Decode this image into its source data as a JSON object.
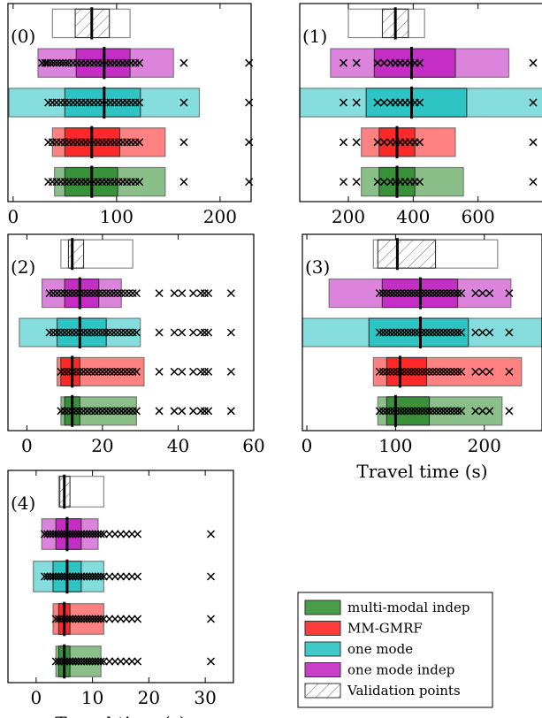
{
  "figure": {
    "legend": [
      {
        "label": "multi-modal indep",
        "color": "#2a8a2a"
      },
      {
        "label": "MM-GMRF",
        "color": "#ff1a1a"
      },
      {
        "label": "one mode",
        "color": "#1fbfbf"
      },
      {
        "label": "one mode indep",
        "color": "#bf1fbf"
      },
      {
        "label": "Validation points",
        "color": "#ffffff",
        "hatch": true
      }
    ]
  },
  "chart_data": [
    {
      "type": "box",
      "panel_label": "(0)",
      "xlabel": "",
      "xlim": [
        -5,
        230
      ],
      "xticks": [
        0,
        100,
        200
      ],
      "rows": [
        {
          "series": "Validation points",
          "whisker": [
            38,
            113
          ],
          "q1": 60,
          "median": 76,
          "q3": 93,
          "outliers": []
        },
        {
          "series": "one mode indep",
          "whisker": [
            24,
            155
          ],
          "q1": 61,
          "median": 88,
          "q3": 113,
          "outliers": [
            28,
            31,
            33,
            36,
            39,
            42,
            45,
            48,
            51,
            54,
            58,
            62,
            66,
            70,
            74,
            78,
            82,
            86,
            90,
            94,
            98,
            102,
            106,
            110,
            114,
            118,
            122,
            165,
            228
          ]
        },
        {
          "series": "one mode",
          "whisker": [
            -4,
            180
          ],
          "q1": 50,
          "median": 88,
          "q3": 123,
          "outliers": [
            34,
            38,
            42,
            46,
            50,
            54,
            58,
            62,
            66,
            70,
            74,
            78,
            82,
            86,
            90,
            94,
            98,
            102,
            106,
            110,
            114,
            118,
            122,
            165,
            228
          ]
        },
        {
          "series": "MM-GMRF",
          "whisker": [
            38,
            147
          ],
          "q1": 50,
          "median": 76,
          "q3": 103,
          "outliers": [
            34,
            38,
            42,
            46,
            50,
            54,
            58,
            62,
            66,
            70,
            74,
            78,
            82,
            86,
            90,
            94,
            98,
            102,
            106,
            110,
            114,
            118,
            122,
            165,
            228
          ]
        },
        {
          "series": "multi-modal indep",
          "whisker": [
            40,
            147
          ],
          "q1": 50,
          "median": 76,
          "q3": 101,
          "outliers": [
            34,
            38,
            42,
            46,
            50,
            54,
            58,
            62,
            66,
            70,
            74,
            78,
            82,
            86,
            90,
            94,
            98,
            102,
            106,
            110,
            114,
            118,
            122,
            165,
            228
          ]
        }
      ]
    },
    {
      "type": "box",
      "panel_label": "(1)",
      "xlabel": "",
      "xlim": [
        50,
        800
      ],
      "xticks": [
        200,
        400,
        600
      ],
      "rows": [
        {
          "series": "Validation points",
          "whisker": [
            200,
            435
          ],
          "q1": 305,
          "median": 345,
          "q3": 385,
          "outliers": []
        },
        {
          "series": "one mode indep",
          "whisker": [
            145,
            695
          ],
          "q1": 280,
          "median": 395,
          "q3": 530,
          "outliers": [
            185,
            225,
            290,
            310,
            330,
            345,
            360,
            375,
            390,
            405,
            420,
            770
          ]
        },
        {
          "series": "one mode",
          "whisker": [
            50,
            800
          ],
          "q1": 255,
          "median": 395,
          "q3": 565,
          "outliers": [
            185,
            225,
            290,
            310,
            330,
            345,
            360,
            375,
            390,
            405,
            420,
            770
          ]
        },
        {
          "series": "MM-GMRF",
          "whisker": [
            240,
            530
          ],
          "q1": 295,
          "median": 350,
          "q3": 405,
          "outliers": [
            185,
            225,
            290,
            310,
            330,
            345,
            360,
            375,
            390,
            405,
            420,
            770
          ]
        },
        {
          "series": "multi-modal indep",
          "whisker": [
            240,
            555
          ],
          "q1": 295,
          "median": 350,
          "q3": 405,
          "outliers": [
            185,
            225,
            290,
            310,
            330,
            345,
            360,
            375,
            390,
            405,
            420,
            770
          ]
        }
      ]
    },
    {
      "type": "box",
      "panel_label": "(2)",
      "xlabel": "",
      "xlim": [
        -5,
        60
      ],
      "xticks": [
        0,
        20,
        40,
        60
      ],
      "rows": [
        {
          "series": "Validation points",
          "whisker": [
            9,
            28
          ],
          "q1": 11,
          "median": 12,
          "q3": 15,
          "outliers": []
        },
        {
          "series": "one mode indep",
          "whisker": [
            4,
            25
          ],
          "q1": 10,
          "median": 14,
          "q3": 19,
          "outliers": [
            6,
            7,
            8,
            9,
            10,
            11,
            12,
            13,
            14,
            15,
            16,
            17,
            18,
            19,
            20,
            21,
            22,
            23,
            24,
            25,
            26,
            27,
            28,
            29,
            35,
            39,
            41,
            44,
            46,
            47,
            48,
            54
          ]
        },
        {
          "series": "one mode",
          "whisker": [
            -2,
            30
          ],
          "q1": 8,
          "median": 14,
          "q3": 21,
          "outliers": [
            6,
            7,
            8,
            9,
            10,
            11,
            12,
            13,
            14,
            15,
            16,
            17,
            18,
            19,
            20,
            21,
            22,
            23,
            24,
            25,
            26,
            27,
            28,
            29,
            35,
            39,
            41,
            44,
            46,
            47,
            48,
            54
          ]
        },
        {
          "series": "MM-GMRF",
          "whisker": [
            8,
            31
          ],
          "q1": 9,
          "median": 12,
          "q3": 14,
          "outliers": [
            9,
            10,
            11,
            12,
            13,
            14,
            15,
            16,
            17,
            18,
            19,
            20,
            21,
            22,
            23,
            24,
            25,
            26,
            27,
            28,
            29,
            35,
            39,
            41,
            44,
            46,
            47,
            48,
            54
          ]
        },
        {
          "series": "multi-modal indep",
          "whisker": [
            9,
            29
          ],
          "q1": 10,
          "median": 12,
          "q3": 14,
          "outliers": [
            9,
            10,
            11,
            12,
            13,
            14,
            15,
            16,
            17,
            18,
            19,
            20,
            21,
            22,
            23,
            24,
            25,
            26,
            27,
            28,
            29,
            35,
            39,
            41,
            44,
            46,
            47,
            48,
            54
          ]
        }
      ]
    },
    {
      "type": "box",
      "panel_label": "(3)",
      "xlabel": "Travel time (s)",
      "xlim": [
        -5,
        265
      ],
      "xticks": [
        0,
        100,
        200
      ],
      "rows": [
        {
          "series": "Validation points",
          "whisker": [
            75,
            215
          ],
          "q1": 80,
          "median": 102,
          "q3": 145,
          "outliers": []
        },
        {
          "series": "one mode indep",
          "whisker": [
            25,
            230
          ],
          "q1": 85,
          "median": 128,
          "q3": 170,
          "outliers": [
            82,
            86,
            90,
            94,
            98,
            102,
            106,
            110,
            114,
            118,
            122,
            126,
            130,
            134,
            138,
            142,
            146,
            150,
            154,
            158,
            162,
            166,
            170,
            174,
            190,
            198,
            206,
            228
          ]
        },
        {
          "series": "one mode",
          "whisker": [
            -5,
            265
          ],
          "q1": 70,
          "median": 128,
          "q3": 182,
          "outliers": [
            82,
            86,
            90,
            94,
            98,
            102,
            106,
            110,
            114,
            118,
            122,
            126,
            130,
            134,
            138,
            142,
            146,
            150,
            154,
            158,
            162,
            166,
            170,
            174,
            190,
            198,
            206,
            228
          ]
        },
        {
          "series": "MM-GMRF",
          "whisker": [
            75,
            242
          ],
          "q1": 90,
          "median": 105,
          "q3": 135,
          "outliers": [
            82,
            86,
            90,
            94,
            98,
            102,
            106,
            110,
            114,
            118,
            122,
            126,
            130,
            134,
            138,
            142,
            146,
            150,
            154,
            158,
            162,
            166,
            170,
            174,
            190,
            198,
            206,
            228
          ]
        },
        {
          "series": "multi-modal indep",
          "whisker": [
            80,
            220
          ],
          "q1": 90,
          "median": 100,
          "q3": 138,
          "outliers": [
            82,
            86,
            90,
            94,
            98,
            102,
            106,
            110,
            114,
            118,
            122,
            126,
            130,
            134,
            138,
            142,
            146,
            150,
            154,
            158,
            162,
            166,
            170,
            174,
            190,
            198,
            206,
            228
          ]
        }
      ]
    },
    {
      "type": "box",
      "panel_label": "(4)",
      "xlabel": "Travel time (s)",
      "xlim": [
        -5,
        35
      ],
      "xticks": [
        0,
        10,
        20,
        30
      ],
      "rows": [
        {
          "series": "Validation points",
          "whisker": [
            4,
            12
          ],
          "q1": 4.2,
          "median": 5,
          "q3": 6,
          "outliers": []
        },
        {
          "series": "one mode indep",
          "whisker": [
            1,
            11
          ],
          "q1": 3.5,
          "median": 5.5,
          "q3": 8,
          "outliers": [
            1.5,
            2,
            2.5,
            3,
            3.5,
            4,
            4.5,
            5,
            5.5,
            6,
            6.5,
            7,
            7.5,
            8,
            8.5,
            9,
            9.5,
            10,
            10.5,
            11,
            11.5,
            12,
            13,
            14,
            15,
            16,
            17,
            18,
            31
          ]
        },
        {
          "series": "one mode",
          "whisker": [
            -0.5,
            12
          ],
          "q1": 3,
          "median": 5.5,
          "q3": 8,
          "outliers": [
            1.5,
            2,
            2.5,
            3,
            3.5,
            4,
            4.5,
            5,
            5.5,
            6,
            6.5,
            7,
            7.5,
            8,
            8.5,
            9,
            9.5,
            10,
            10.5,
            11,
            11.5,
            12,
            13,
            14,
            15,
            16,
            17,
            18,
            31
          ]
        },
        {
          "series": "MM-GMRF",
          "whisker": [
            3,
            12
          ],
          "q1": 4,
          "median": 5,
          "q3": 6,
          "outliers": [
            3.5,
            4,
            4.5,
            5,
            5.5,
            6,
            6.5,
            7,
            7.5,
            8,
            8.5,
            9,
            9.5,
            10,
            10.5,
            11,
            11.5,
            12,
            13,
            14,
            15,
            16,
            17,
            18,
            31
          ]
        },
        {
          "series": "multi-modal indep",
          "whisker": [
            3.5,
            11.5
          ],
          "q1": 4,
          "median": 5,
          "q3": 6,
          "outliers": [
            3.5,
            4,
            4.5,
            5,
            5.5,
            6,
            6.5,
            7,
            7.5,
            8,
            8.5,
            9,
            9.5,
            10,
            10.5,
            11,
            11.5,
            12,
            13,
            14,
            15,
            16,
            17,
            18,
            31
          ]
        }
      ]
    }
  ]
}
